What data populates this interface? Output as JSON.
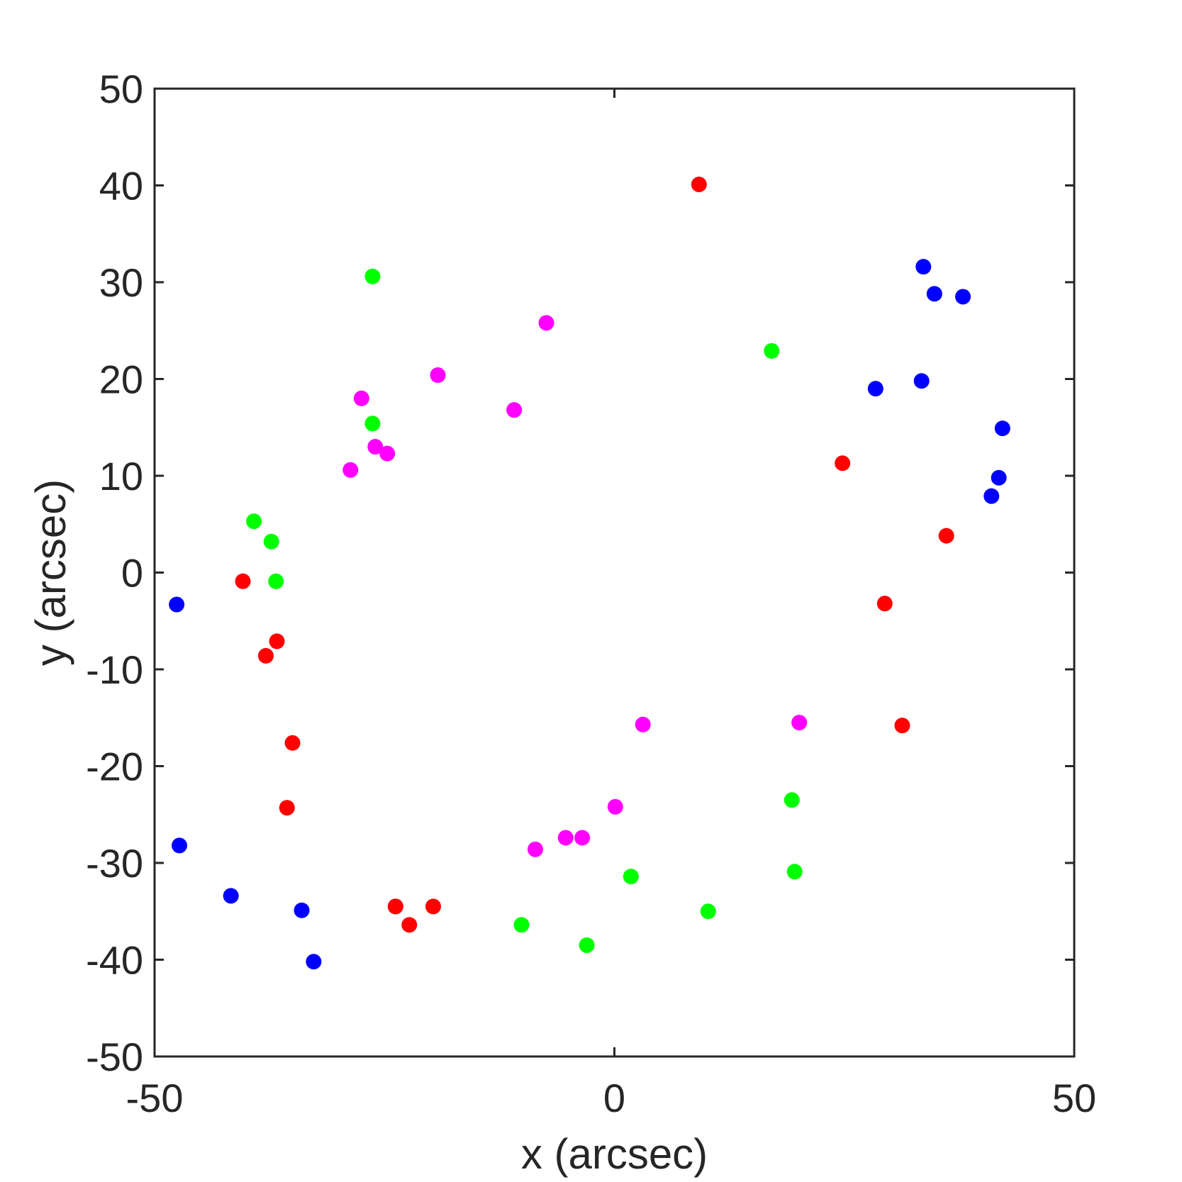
{
  "chart_data": {
    "type": "scatter",
    "title": "",
    "xlabel": "x (arcsec)",
    "ylabel": "y (arcsec)",
    "xlim": [
      -50,
      50
    ],
    "ylim": [
      -50,
      50
    ],
    "xticks": [
      -50,
      0,
      50
    ],
    "yticks": [
      -50,
      -40,
      -30,
      -20,
      -10,
      0,
      10,
      20,
      30,
      40,
      50
    ],
    "x_tick_labels": [
      "-50",
      "0",
      "50"
    ],
    "y_tick_labels": [
      "-50",
      "-40",
      "-30",
      "-20",
      "-10",
      "0",
      "10",
      "20",
      "30",
      "40",
      "50"
    ],
    "grid": false,
    "series": [
      {
        "color": "#ff0000",
        "points": [
          [
            9.2,
            40.1
          ],
          [
            24.8,
            11.3
          ],
          [
            36.1,
            3.8
          ],
          [
            29.4,
            -3.2
          ],
          [
            31.3,
            -15.8
          ],
          [
            -40.4,
            -0.9
          ],
          [
            -36.7,
            -7.1
          ],
          [
            -37.9,
            -8.6
          ],
          [
            -35.0,
            -17.6
          ],
          [
            -35.6,
            -24.3
          ],
          [
            -23.8,
            -34.5
          ],
          [
            -23.8,
            -34.5
          ],
          [
            -22.3,
            -36.4
          ],
          [
            -19.7,
            -34.5
          ]
        ]
      },
      {
        "color": "#00ff00",
        "points": [
          [
            -26.3,
            30.6
          ],
          [
            17.1,
            22.9
          ],
          [
            -26.3,
            15.4
          ],
          [
            -39.2,
            5.3
          ],
          [
            -37.3,
            3.2
          ],
          [
            -36.8,
            -0.9
          ],
          [
            19.3,
            -23.5
          ],
          [
            19.6,
            -30.9
          ],
          [
            1.8,
            -31.4
          ],
          [
            10.2,
            -35.0
          ],
          [
            -10.1,
            -36.4
          ],
          [
            -3.0,
            -38.5
          ]
        ]
      },
      {
        "color": "#ff00ff",
        "points": [
          [
            -7.4,
            25.8
          ],
          [
            -19.2,
            20.4
          ],
          [
            -27.5,
            18.0
          ],
          [
            -10.9,
            16.8
          ],
          [
            -26.0,
            13.0
          ],
          [
            -24.7,
            12.3
          ],
          [
            -28.7,
            10.6
          ],
          [
            3.1,
            -15.7
          ],
          [
            20.1,
            -15.5
          ],
          [
            0.1,
            -24.2
          ],
          [
            -5.3,
            -27.4
          ],
          [
            -3.5,
            -27.4
          ],
          [
            -8.6,
            -28.6
          ]
        ]
      },
      {
        "color": "#0000ff",
        "points": [
          [
            33.6,
            31.6
          ],
          [
            34.8,
            28.8
          ],
          [
            37.9,
            28.5
          ],
          [
            28.4,
            19.0
          ],
          [
            33.4,
            19.8
          ],
          [
            42.2,
            14.9
          ],
          [
            41.8,
            9.8
          ],
          [
            41.0,
            7.9
          ],
          [
            -47.6,
            -3.3
          ],
          [
            -47.3,
            -28.2
          ],
          [
            -41.7,
            -33.4
          ],
          [
            -34.0,
            -34.9
          ],
          [
            -32.7,
            -40.2
          ]
        ]
      }
    ]
  }
}
